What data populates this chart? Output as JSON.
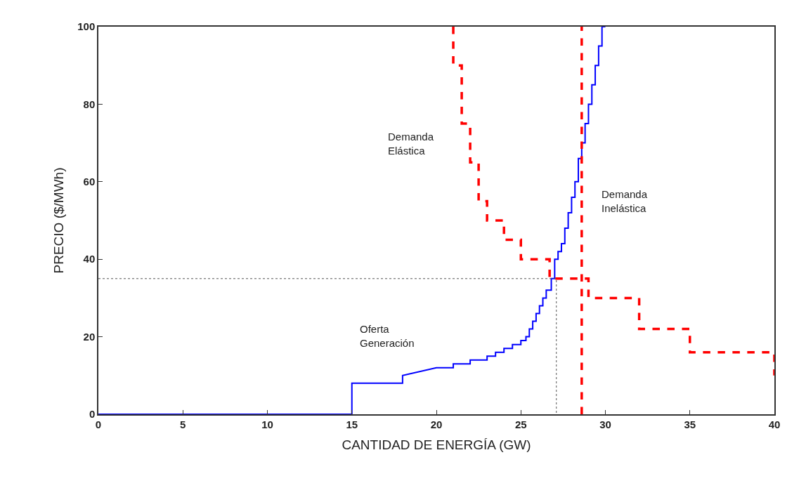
{
  "chart_data": {
    "type": "line",
    "xlabel": "CANTIDAD DE ENERGÍA (GW)",
    "ylabel": "PRECIO ($/MWh)",
    "xlim": [
      0,
      40
    ],
    "ylim": [
      0,
      100
    ],
    "xticks": [
      0,
      5,
      10,
      15,
      20,
      25,
      30,
      35,
      40
    ],
    "yticks": [
      0,
      20,
      40,
      60,
      80,
      100
    ],
    "legend": false,
    "marker": "none",
    "series": [
      {
        "name": "Oferta\nGeneración",
        "color": "#0000ff",
        "line_style": "solid",
        "x": [
          0,
          15,
          15,
          18,
          18,
          20,
          21,
          21,
          22,
          22,
          23,
          23,
          23.5,
          23.5,
          24,
          24,
          24.5,
          24.5,
          25,
          25,
          25.3,
          25.3,
          25.5,
          25.5,
          25.7,
          25.7,
          25.9,
          25.9,
          26.1,
          26.1,
          26.3,
          26.3,
          26.5,
          26.5,
          26.8,
          26.8,
          27.0,
          27.0,
          27.2,
          27.2,
          27.4,
          27.4,
          27.6,
          27.6,
          27.8,
          27.8,
          28.0,
          28.0,
          28.2,
          28.2,
          28.4,
          28.4,
          28.6,
          28.6,
          28.8,
          28.8,
          29.0,
          29.0,
          29.2,
          29.2,
          29.4,
          29.4,
          29.6,
          29.6,
          29.8,
          29.8,
          30
        ],
        "values": [
          0,
          0,
          8,
          8,
          10,
          12,
          12,
          13,
          13,
          14,
          14,
          15,
          15,
          16,
          16,
          17,
          17,
          18,
          18,
          19,
          19,
          20,
          20,
          22,
          22,
          24,
          24,
          26,
          26,
          28,
          28,
          30,
          30,
          32,
          32,
          35,
          35,
          40,
          40,
          42,
          42,
          44,
          44,
          48,
          48,
          52,
          52,
          56,
          56,
          60,
          60,
          66,
          66,
          70,
          70,
          75,
          75,
          80,
          80,
          85,
          85,
          90,
          90,
          95,
          95,
          100,
          100
        ]
      },
      {
        "name": "Demanda\nElástica",
        "color": "#ff0000",
        "line_style": "dashed",
        "x": [
          21,
          21,
          21.5,
          21.5,
          22,
          22,
          22.5,
          22.5,
          23,
          23,
          24,
          24,
          25,
          25,
          26.7,
          26.7,
          29,
          29,
          32,
          32,
          35,
          35,
          40,
          40
        ],
        "values": [
          100,
          90,
          90,
          75,
          75,
          65,
          65,
          55,
          55,
          50,
          50,
          45,
          45,
          40,
          40,
          35,
          35,
          30,
          30,
          22,
          22,
          16,
          16,
          10
        ]
      },
      {
        "name": "Demanda\nInelástica",
        "color": "#ff0000",
        "line_style": "dashed",
        "x": [
          28.6,
          28.6
        ],
        "values": [
          0,
          100
        ]
      },
      {
        "color": "#555555",
        "line_style": "dotted",
        "x": [
          0,
          27.1,
          27.1
        ],
        "values": [
          35,
          35,
          0
        ]
      }
    ]
  }
}
